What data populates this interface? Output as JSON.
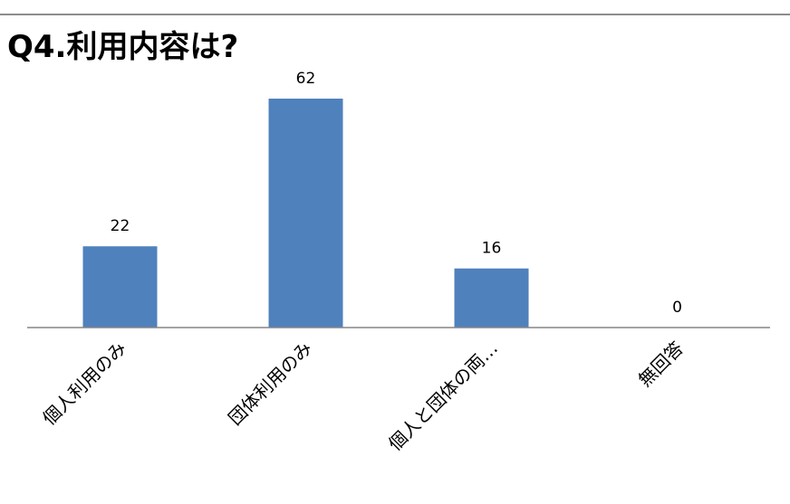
{
  "chart_data": {
    "type": "bar",
    "title": "Q4.利用内容は?",
    "categories": [
      "個人利用のみ",
      "団体利用のみ",
      "個人と団体の両…",
      "無回答"
    ],
    "values": [
      22,
      62,
      16,
      0
    ],
    "ylim": [
      0,
      62
    ],
    "grid": false,
    "legend": "none",
    "bar_color": "#4f81bd",
    "axis_color": "#868686"
  }
}
